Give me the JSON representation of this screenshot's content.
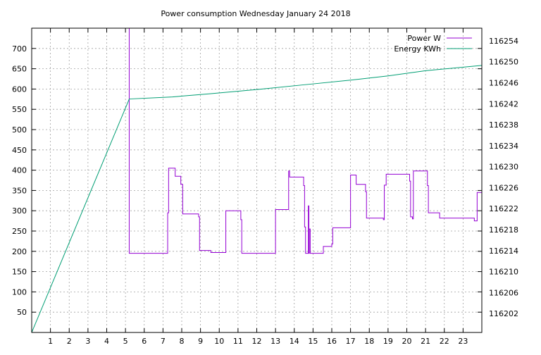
{
  "chart_data": {
    "type": "line",
    "title": "Power consumption Wednesday January 24 2018",
    "x_ticks": [
      1,
      2,
      3,
      4,
      5,
      6,
      7,
      8,
      9,
      10,
      11,
      12,
      13,
      14,
      15,
      16,
      17,
      18,
      19,
      20,
      21,
      22,
      23
    ],
    "xlim": [
      0,
      24
    ],
    "y_left_ticks": [
      50,
      100,
      150,
      200,
      250,
      300,
      350,
      400,
      450,
      500,
      550,
      600,
      650,
      700
    ],
    "ylim_left": [
      0,
      750
    ],
    "y_right_ticks": [
      116202,
      116206,
      116210,
      116214,
      116218,
      116222,
      116226,
      116230,
      116234,
      116238,
      116242,
      116246,
      116250,
      116254
    ],
    "ylim_right": [
      116198.4,
      116256.4
    ],
    "grid": true,
    "legend_position": "top-right",
    "series": [
      {
        "name": "Power W",
        "axis": "left",
        "color": "#9400d3",
        "points": [
          [
            5.2,
            750
          ],
          [
            5.2,
            195
          ],
          [
            7.25,
            195
          ],
          [
            7.25,
            295
          ],
          [
            7.3,
            295
          ],
          [
            7.3,
            405
          ],
          [
            7.65,
            405
          ],
          [
            7.65,
            385
          ],
          [
            7.95,
            385
          ],
          [
            7.95,
            365
          ],
          [
            8.05,
            365
          ],
          [
            8.05,
            292
          ],
          [
            8.9,
            292
          ],
          [
            8.9,
            285
          ],
          [
            8.95,
            285
          ],
          [
            8.95,
            202
          ],
          [
            9.55,
            202
          ],
          [
            9.55,
            197
          ],
          [
            10.35,
            197
          ],
          [
            10.35,
            300
          ],
          [
            11.15,
            300
          ],
          [
            11.15,
            278
          ],
          [
            11.2,
            278
          ],
          [
            11.2,
            195
          ],
          [
            13.0,
            195
          ],
          [
            13.0,
            303
          ],
          [
            13.7,
            303
          ],
          [
            13.7,
            398
          ],
          [
            13.75,
            398
          ],
          [
            13.75,
            383
          ],
          [
            14.5,
            383
          ],
          [
            14.5,
            362
          ],
          [
            14.55,
            362
          ],
          [
            14.55,
            260
          ],
          [
            14.6,
            260
          ],
          [
            14.6,
            195
          ],
          [
            14.75,
            195
          ],
          [
            14.75,
            312
          ],
          [
            14.78,
            312
          ],
          [
            14.78,
            195
          ],
          [
            14.8,
            195
          ],
          [
            14.8,
            255
          ],
          [
            14.85,
            255
          ],
          [
            14.85,
            195
          ],
          [
            15.55,
            195
          ],
          [
            15.55,
            212
          ],
          [
            16.0,
            212
          ],
          [
            16.0,
            218
          ],
          [
            16.05,
            218
          ],
          [
            16.05,
            258
          ],
          [
            17.0,
            258
          ],
          [
            17.0,
            388
          ],
          [
            17.3,
            388
          ],
          [
            17.3,
            365
          ],
          [
            17.8,
            365
          ],
          [
            17.8,
            347
          ],
          [
            17.85,
            347
          ],
          [
            17.85,
            282
          ],
          [
            18.75,
            282
          ],
          [
            18.75,
            278
          ],
          [
            18.8,
            278
          ],
          [
            18.8,
            363
          ],
          [
            18.9,
            363
          ],
          [
            18.9,
            390
          ],
          [
            20.15,
            390
          ],
          [
            20.15,
            373
          ],
          [
            20.2,
            373
          ],
          [
            20.2,
            285
          ],
          [
            20.3,
            285
          ],
          [
            20.3,
            280
          ],
          [
            20.35,
            280
          ],
          [
            20.35,
            398
          ],
          [
            21.1,
            398
          ],
          [
            21.1,
            362
          ],
          [
            21.15,
            362
          ],
          [
            21.15,
            295
          ],
          [
            21.75,
            295
          ],
          [
            21.75,
            282
          ],
          [
            23.6,
            282
          ],
          [
            23.6,
            275
          ],
          [
            23.75,
            275
          ],
          [
            23.75,
            345
          ],
          [
            24.0,
            345
          ]
        ]
      },
      {
        "name": "Energy KWh",
        "axis": "right",
        "color": "#009e73",
        "points": [
          [
            0,
            116198.4
          ],
          [
            5.2,
            116242.9
          ],
          [
            7.5,
            116243.3
          ],
          [
            9.5,
            116243.9
          ],
          [
            12,
            116244.7
          ],
          [
            14.5,
            116245.6
          ],
          [
            17,
            116246.5
          ],
          [
            19,
            116247.3
          ],
          [
            21,
            116248.3
          ],
          [
            24,
            116249.3
          ]
        ]
      }
    ]
  }
}
